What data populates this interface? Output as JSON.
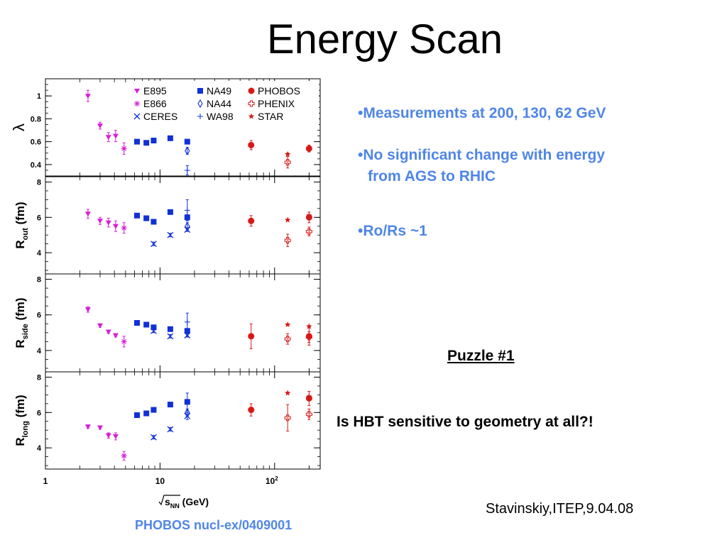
{
  "slide": {
    "title": "Energy Scan",
    "bullets": [
      "•Measurements at 200, 130, 62 GeV",
      "•No significant change with energy",
      "from AGS to RHIC",
      "•Ro/Rs ~1"
    ],
    "puzzle": "Puzzle #1",
    "question": "Is HBT sensitive to geometry at all?!",
    "credit": "Stavinskiy,ITEP,9.04.08",
    "reference": "PHOBOS nucl-ex/0409001"
  },
  "chart_data": {
    "type": "scatter",
    "xlabel": "√sNN (GeV)",
    "xscale": "log",
    "xlim": [
      1,
      250
    ],
    "xticks": [
      "1",
      "10",
      "10²"
    ],
    "legend": [
      "E895",
      "NA49",
      "PHOBOS",
      "E866",
      "NA44",
      "PHENIX",
      "CERES",
      "WA98",
      "STAR"
    ],
    "legend_position": "top",
    "colors": {
      "E895": "#d61fd6",
      "E866": "#d61fd6",
      "NA49": "#1030d8",
      "CERES": "#1030d8",
      "NA44": "#1030d8",
      "WA98": "#1030d8",
      "PHOBOS": "#d81818",
      "PHENIX": "#d81818",
      "STAR": "#d81818"
    },
    "panels": [
      {
        "ylabel": "λ",
        "ylim": [
          0.3,
          1.15
        ],
        "yticks": [
          "0.4",
          "0.6",
          "0.8",
          "1"
        ],
        "series": [
          {
            "name": "E895",
            "x": [
              2.35,
              3.0,
              3.55,
              4.1
            ],
            "y": [
              1.0,
              0.74,
              0.64,
              0.65
            ],
            "err": [
              0.05,
              0.03,
              0.04,
              0.05
            ]
          },
          {
            "name": "E866",
            "x": [
              4.85
            ],
            "y": [
              0.54
            ],
            "err": [
              0.05
            ]
          },
          {
            "name": "NA49",
            "x": [
              6.3,
              7.6,
              8.8,
              12.3,
              17.3
            ],
            "y": [
              0.6,
              0.59,
              0.61,
              0.63,
              0.6
            ],
            "err": [
              0.01,
              0.01,
              0.01,
              0.01,
              0.01
            ]
          },
          {
            "name": "NA44",
            "x": [
              17.3
            ],
            "y": [
              0.52
            ],
            "err": [
              0.03
            ]
          },
          {
            "name": "WA98",
            "x": [
              17.3
            ],
            "y": [
              0.35
            ],
            "err": [
              0.04
            ]
          },
          {
            "name": "PHOBOS",
            "x": [
              62.4,
              200
            ],
            "y": [
              0.57,
              0.54
            ],
            "err": [
              0.04,
              0.03
            ]
          },
          {
            "name": "PHENIX",
            "x": [
              130
            ],
            "y": [
              0.42
            ],
            "err": [
              0.05
            ]
          },
          {
            "name": "STAR",
            "x": [
              130
            ],
            "y": [
              0.49
            ],
            "err": [
              0.01
            ]
          }
        ]
      },
      {
        "ylabel": "Rout (fm)",
        "ylim": [
          2.8,
          8.3
        ],
        "yticks": [
          "4",
          "6",
          "8"
        ],
        "series": [
          {
            "name": "E895",
            "x": [
              2.35,
              3.0,
              3.55,
              4.1
            ],
            "y": [
              6.2,
              5.8,
              5.7,
              5.5
            ],
            "err": [
              0.25,
              0.2,
              0.25,
              0.3
            ]
          },
          {
            "name": "E866",
            "x": [
              4.85
            ],
            "y": [
              5.4
            ],
            "err": [
              0.3
            ]
          },
          {
            "name": "NA49",
            "x": [
              6.3,
              7.6,
              8.8,
              12.3,
              17.3
            ],
            "y": [
              6.1,
              5.95,
              5.75,
              6.3,
              6.0
            ],
            "err": [
              0.1,
              0.1,
              0.1,
              0.1,
              0.15
            ]
          },
          {
            "name": "CERES",
            "x": [
              8.8,
              12.3,
              17.3
            ],
            "y": [
              4.5,
              5.0,
              5.3
            ],
            "err": [
              0.1,
              0.1,
              0.1
            ]
          },
          {
            "name": "NA44",
            "x": [
              17.3
            ],
            "y": [
              5.5
            ],
            "err": [
              0.2
            ]
          },
          {
            "name": "WA98",
            "x": [
              17.3
            ],
            "y": [
              6.4
            ],
            "err": [
              0.6
            ]
          },
          {
            "name": "PHOBOS",
            "x": [
              62.4,
              200
            ],
            "y": [
              5.8,
              6.0
            ],
            "err": [
              0.3,
              0.3
            ]
          },
          {
            "name": "PHENIX",
            "x": [
              130,
              200
            ],
            "y": [
              4.7,
              5.2
            ],
            "err": [
              0.35,
              0.25
            ]
          },
          {
            "name": "STAR",
            "x": [
              130,
              200
            ],
            "y": [
              5.85,
              6.1
            ],
            "err": [
              0.05,
              0.05
            ]
          }
        ]
      },
      {
        "ylabel": "Rside (fm)",
        "ylim": [
          2.8,
          8.3
        ],
        "yticks": [
          "4",
          "6",
          "8"
        ],
        "series": [
          {
            "name": "E895",
            "x": [
              2.35,
              3.0,
              3.55,
              4.1
            ],
            "y": [
              6.3,
              5.4,
              5.05,
              4.85
            ],
            "err": [
              0.15,
              0.1,
              0.1,
              0.1
            ]
          },
          {
            "name": "E866",
            "x": [
              4.85
            ],
            "y": [
              4.5
            ],
            "err": [
              0.3
            ]
          },
          {
            "name": "NA49",
            "x": [
              6.3,
              7.6,
              8.8,
              12.3,
              17.3
            ],
            "y": [
              5.55,
              5.45,
              5.3,
              5.2,
              5.1
            ],
            "err": [
              0.05,
              0.05,
              0.05,
              0.05,
              0.05
            ]
          },
          {
            "name": "CERES",
            "x": [
              8.8,
              12.3,
              17.3
            ],
            "y": [
              5.1,
              4.8,
              4.85
            ],
            "err": [
              0.1,
              0.1,
              0.1
            ]
          },
          {
            "name": "NA44",
            "x": [
              17.3
            ],
            "y": [
              5.0
            ],
            "err": [
              0.2
            ]
          },
          {
            "name": "WA98",
            "x": [
              17.3
            ],
            "y": [
              5.6
            ],
            "err": [
              0.5
            ]
          },
          {
            "name": "PHOBOS",
            "x": [
              62.4,
              200
            ],
            "y": [
              4.8,
              4.8
            ],
            "err": [
              0.7,
              0.5
            ]
          },
          {
            "name": "PHENIX",
            "x": [
              130,
              200
            ],
            "y": [
              4.65,
              4.75
            ],
            "err": [
              0.3,
              0.3
            ]
          },
          {
            "name": "STAR",
            "x": [
              130,
              200
            ],
            "y": [
              5.45,
              5.35
            ],
            "err": [
              0.05,
              0.05
            ]
          }
        ]
      },
      {
        "ylabel": "Rlong (fm)",
        "ylim": [
          2.8,
          8.3
        ],
        "yticks": [
          "4",
          "6",
          "8"
        ],
        "series": [
          {
            "name": "E895",
            "x": [
              2.35,
              3.0,
              3.55,
              4.1
            ],
            "y": [
              5.2,
              5.15,
              4.7,
              4.65
            ],
            "err": [
              0.1,
              0.1,
              0.15,
              0.2
            ]
          },
          {
            "name": "E866",
            "x": [
              4.85
            ],
            "y": [
              3.55
            ],
            "err": [
              0.25
            ]
          },
          {
            "name": "NA49",
            "x": [
              6.3,
              7.6,
              8.8,
              12.3,
              17.3
            ],
            "y": [
              5.85,
              5.95,
              6.15,
              6.45,
              6.6
            ],
            "err": [
              0.05,
              0.05,
              0.05,
              0.05,
              0.1
            ]
          },
          {
            "name": "CERES",
            "x": [
              8.8,
              12.3,
              17.3
            ],
            "y": [
              4.6,
              5.05,
              5.8
            ],
            "err": [
              0.1,
              0.1,
              0.2
            ]
          },
          {
            "name": "NA44",
            "x": [
              17.3
            ],
            "y": [
              6.0
            ],
            "err": [
              0.2
            ]
          },
          {
            "name": "WA98",
            "x": [
              17.3
            ],
            "y": [
              6.6
            ],
            "err": [
              0.5
            ]
          },
          {
            "name": "PHOBOS",
            "x": [
              62.4,
              200
            ],
            "y": [
              6.15,
              6.8
            ],
            "err": [
              0.35,
              0.4
            ]
          },
          {
            "name": "PHENIX",
            "x": [
              130,
              200
            ],
            "y": [
              5.7,
              5.9
            ],
            "err": [
              0.75,
              0.3
            ]
          },
          {
            "name": "STAR",
            "x": [
              130,
              200
            ],
            "y": [
              7.1,
              6.9
            ],
            "err": [
              0.05,
              0.05
            ]
          }
        ]
      }
    ]
  }
}
